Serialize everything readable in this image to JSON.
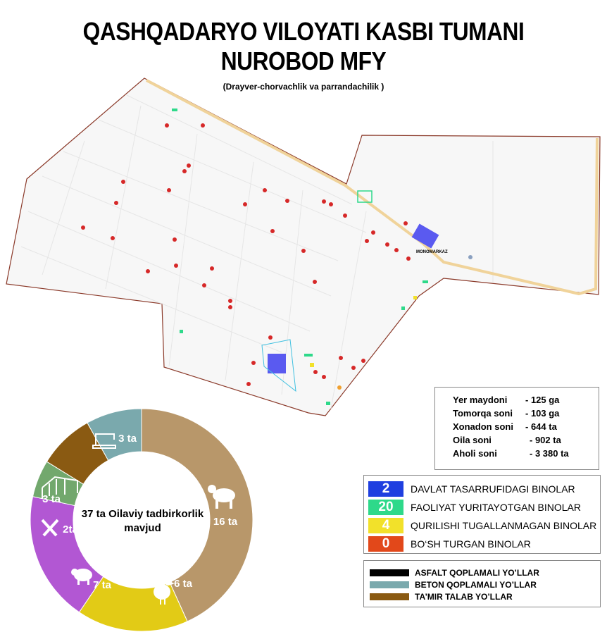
{
  "title_line1": "QASHQADARYO VILOYATI KASBI TUMANI",
  "title_line2": "NUROBOD MFY",
  "subtitle": "(Drayver-chorvachlik va parrandachilik )",
  "map": {
    "label_monomarkaz": "MONOMARKAZ"
  },
  "stats": [
    {
      "label": "Yer maydoni",
      "value": "- 125 ga"
    },
    {
      "label": "Tomorqa soni",
      "value": "- 103 ga"
    },
    {
      "label": "Xonadon soni",
      "value": "- 644 ta"
    },
    {
      "label": "Oila soni",
      "value": "- 902 ta"
    },
    {
      "label": "Aholi soni",
      "value": "- 3 380 ta"
    }
  ],
  "building_legend": [
    {
      "count": "2",
      "label": "DAVLAT TASARRUFIDAGI BINOLAR",
      "color": "#1f3fe0",
      "text_color": "#ffffff"
    },
    {
      "count": "20",
      "label": "FAOLIYAT YURITAYOTGAN BINOLAR",
      "color": "#2ed98a",
      "text_color": "#ffffff"
    },
    {
      "count": "4",
      "label": "QURILISHI TUGALLANMAGAN BINOLAR",
      "color": "#f2e12a",
      "text_color": "#ffffff"
    },
    {
      "count": "0",
      "label": "BO‘SH TURGAN BINOLAR",
      "color": "#e2481a",
      "text_color": "#ffffff"
    }
  ],
  "road_legend": [
    {
      "label": "ASFALT QOPLAMALI  YO’LLAR",
      "color": "#000000"
    },
    {
      "label": "BETON QOPLAMALI YO’LLAR",
      "color": "#7aa9ad"
    },
    {
      "label": "TA’MIR TALAB YO’LLAR",
      "color": "#8a5a12"
    }
  ],
  "donut": {
    "center_line1": "37 ta Oilaviy tadbirkorlik",
    "center_line2": "mavjud",
    "segments": [
      {
        "label": "16 ta",
        "value": 16,
        "color": "#b8976a",
        "icon": "cow-icon"
      },
      {
        "label": "6 ta",
        "value": 6,
        "color": "#e2cb16",
        "icon": "chicken-icon"
      },
      {
        "label": "7 ta",
        "value": 7,
        "color": "#b257d3",
        "icon": "sheep-icon"
      },
      {
        "label": "2ta",
        "value": 2,
        "color": "#72a86d",
        "icon": "tools-icon"
      },
      {
        "label": "3 ta",
        "value": 3,
        "color": "#8a5a12",
        "icon": "greenhouse-icon"
      },
      {
        "label": "3 ta",
        "value": 3,
        "color": "#7aa9ad",
        "icon": "sewing-machine-icon"
      }
    ]
  }
}
